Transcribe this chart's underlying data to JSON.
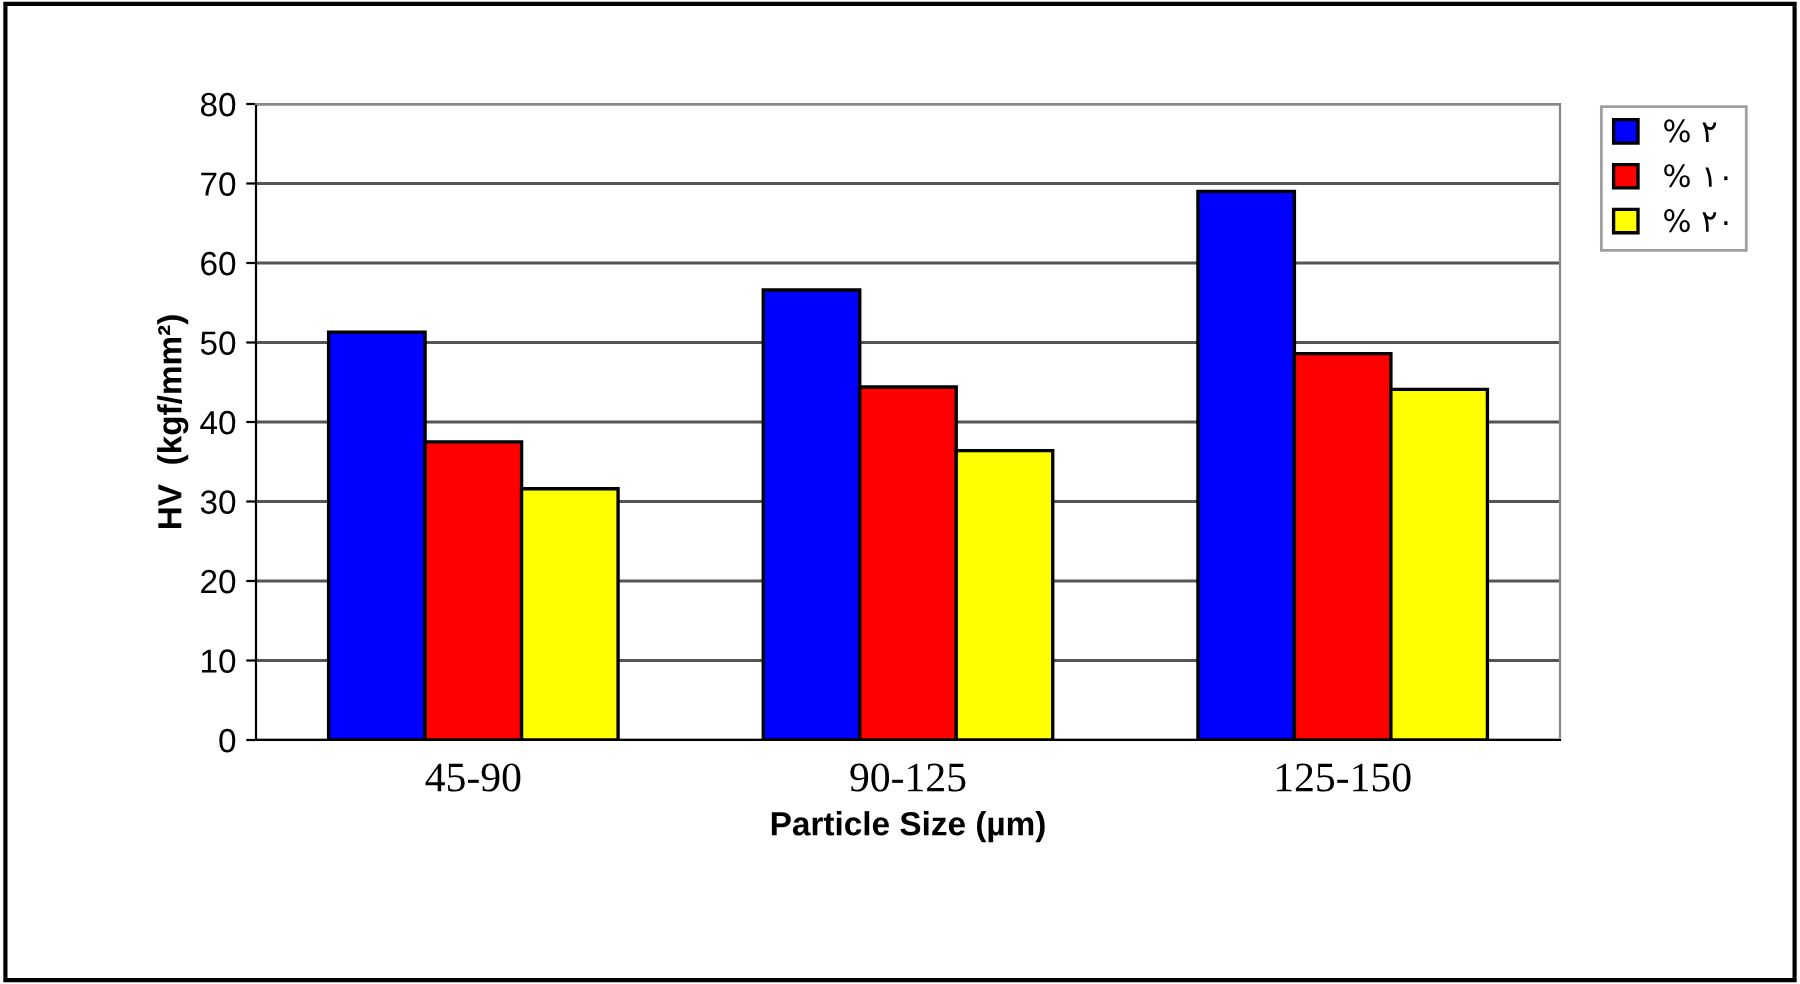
{
  "chart_data": {
    "type": "bar",
    "xlabel": "Particle Size (µm)",
    "ylabel": "HV  (kgf/mm²)",
    "categories": [
      "45-90",
      "90-125",
      "125-150"
    ],
    "series": [
      {
        "name": "% ٢",
        "color": "#0000ff",
        "values": [
          51.3,
          56.6,
          69.0
        ]
      },
      {
        "name": "% ١٠",
        "color": "#ff0000",
        "values": [
          37.5,
          44.4,
          48.6
        ]
      },
      {
        "name": "% ٢٠",
        "color": "#ffff00",
        "values": [
          31.6,
          36.4,
          44.1
        ]
      }
    ],
    "ylim": [
      0,
      80
    ],
    "yticks": [
      0,
      10,
      20,
      30,
      40,
      50,
      60,
      70,
      80
    ],
    "grid": "y",
    "legend": "top right"
  }
}
